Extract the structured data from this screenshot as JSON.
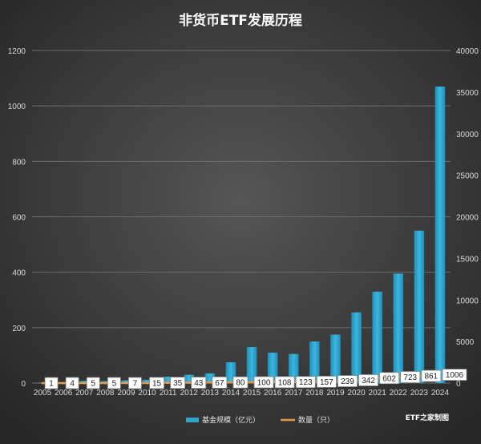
{
  "chart_data": {
    "type": "bar",
    "title": "非货币ETF发展历程",
    "categories": [
      "2005",
      "2006",
      "2007",
      "2008",
      "2009",
      "2010",
      "2011",
      "2012",
      "2013",
      "2014",
      "2015",
      "2016",
      "2017",
      "2018",
      "2019",
      "2020",
      "2021",
      "2022",
      "2023",
      "2024"
    ],
    "series": [
      {
        "name": "基金规模（亿元）",
        "type": "bar",
        "axis": "left",
        "color": "#2ea7cf",
        "values": [
          2,
          4,
          8,
          7,
          10,
          12,
          23,
          30,
          35,
          75,
          130,
          110,
          105,
          150,
          175,
          255,
          330,
          395,
          550,
          1070
        ]
      },
      {
        "name": "数量（只）",
        "type": "line",
        "axis": "right",
        "color": "#e8954a",
        "values": [
          1,
          4,
          5,
          5,
          7,
          15,
          35,
          43,
          67,
          80,
          100,
          108,
          123,
          157,
          239,
          342,
          602,
          723,
          861,
          1006
        ],
        "data_labels": [
          "1",
          "4",
          "5",
          "5",
          "7",
          "15",
          "35",
          "43",
          "67",
          "80",
          "100",
          "108",
          "123",
          "157",
          "239",
          "342",
          "602",
          "723",
          "861",
          "1006"
        ]
      }
    ],
    "y_left": {
      "range": [
        0,
        1200
      ],
      "ticks": [
        "0",
        "200",
        "400",
        "600",
        "800",
        "1000",
        "1200"
      ]
    },
    "y_right": {
      "range": [
        0,
        40000
      ],
      "ticks": [
        "0",
        "5000",
        "10000",
        "15000",
        "20000",
        "25000",
        "30000",
        "35000",
        "40000"
      ]
    },
    "grid": true,
    "legend_position": "bottom",
    "credit": "ETF之家制图",
    "colors": {
      "background_center": "#555555",
      "background_edge": "#262626",
      "gridline": "#6b6b6b",
      "axis_text": "#d9d9d9"
    }
  }
}
